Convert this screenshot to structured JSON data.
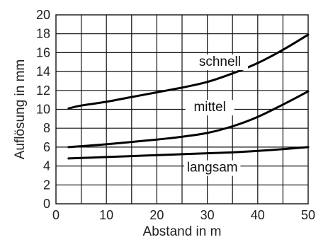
{
  "chart_data": {
    "type": "line",
    "title": "",
    "xlabel": "Abstand in m",
    "ylabel": "Auflösung in mm",
    "xlim": [
      0,
      50
    ],
    "ylim": [
      0,
      20
    ],
    "xticks": [
      0,
      10,
      20,
      30,
      40,
      50
    ],
    "yticks": [
      0,
      2,
      4,
      6,
      8,
      10,
      12,
      14,
      16,
      18,
      20
    ],
    "grid": true,
    "series": [
      {
        "name": "schnell",
        "x": [
          2.5,
          5,
          10,
          15,
          20,
          25,
          30,
          35,
          40,
          45,
          50
        ],
        "y": [
          10.1,
          10.4,
          10.8,
          11.3,
          11.8,
          12.3,
          12.9,
          13.8,
          14.9,
          16.3,
          17.9
        ]
      },
      {
        "name": "mittel",
        "x": [
          2.5,
          5,
          10,
          15,
          20,
          25,
          30,
          35,
          40,
          45,
          50
        ],
        "y": [
          6.0,
          6.1,
          6.3,
          6.55,
          6.8,
          7.1,
          7.5,
          8.2,
          9.2,
          10.5,
          11.9
        ]
      },
      {
        "name": "langsam",
        "x": [
          2.5,
          5,
          10,
          15,
          20,
          25,
          30,
          35,
          40,
          45,
          50
        ],
        "y": [
          4.8,
          4.85,
          4.95,
          5.05,
          5.15,
          5.25,
          5.35,
          5.45,
          5.6,
          5.78,
          6.0
        ]
      }
    ]
  }
}
